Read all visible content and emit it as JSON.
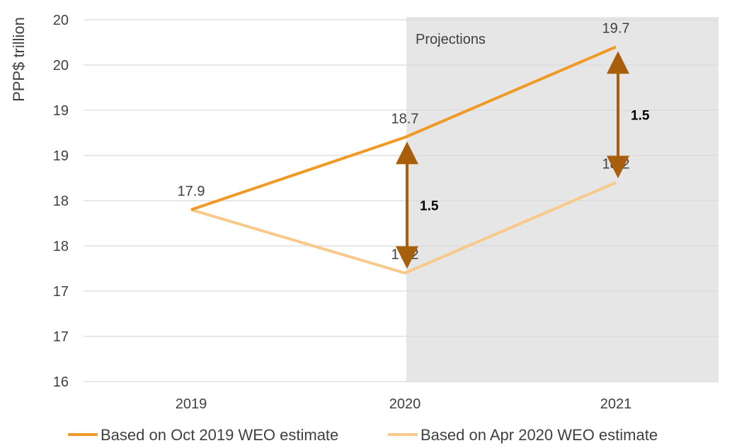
{
  "chart_data": {
    "type": "line",
    "ylabel": "PPP$ trillion",
    "ylim": [
      16,
      20
    ],
    "y_tick_labels": [
      "20",
      "20",
      "19",
      "19",
      "18",
      "18",
      "17",
      "17",
      "16"
    ],
    "categories": [
      "2019",
      "2020",
      "2021"
    ],
    "series": [
      {
        "name": "Based on Oct 2019 WEO estimate",
        "values": [
          17.9,
          18.7,
          19.7
        ],
        "labels": [
          "17.9",
          "18.7",
          "19.7"
        ],
        "color": "#f09a25"
      },
      {
        "name": "Based on Apr 2020 WEO estimate",
        "values": [
          17.9,
          17.2,
          18.2
        ],
        "labels": [
          "",
          "17.2",
          "18.2"
        ],
        "color": "#f8c98a"
      }
    ],
    "shaded_region": {
      "label": "Projections",
      "from": "2020",
      "to": "2021",
      "color": "#e6e6e6"
    },
    "annotations": [
      {
        "category": "2020",
        "text": "1.5",
        "arrow_color": "#a85f0c"
      },
      {
        "category": "2021",
        "text": "1.5",
        "arrow_color": "#a85f0c"
      }
    ],
    "grid": true,
    "legend_position": "bottom"
  }
}
